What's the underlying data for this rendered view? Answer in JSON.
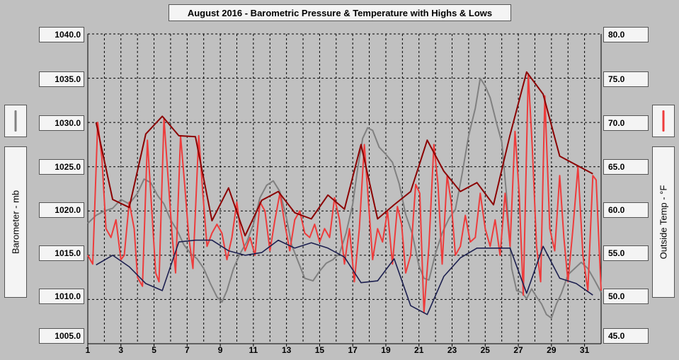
{
  "chart_data": {
    "type": "line",
    "title": "August 2016 - Barometric Pressure & Temperature with Highs & Lows",
    "left_axis": {
      "label": "Barometer - mb",
      "ylim": [
        1005,
        1040
      ],
      "ticks": [
        "1040.0",
        "1035.0",
        "1030.0",
        "1025.0",
        "1020.0",
        "1015.0",
        "1010.0",
        "1005.0"
      ]
    },
    "right_axis": {
      "label": "Outside Temp - °F",
      "ylim": [
        45,
        80
      ],
      "ticks": [
        "80.0",
        "75.0",
        "70.0",
        "65.0",
        "60.0",
        "55.0",
        "50.0",
        "45.0"
      ]
    },
    "x_axis": {
      "xlim": [
        1,
        32
      ],
      "tick_labels": [
        "1",
        "3",
        "5",
        "7",
        "9",
        "11",
        "13",
        "15",
        "17",
        "19",
        "21",
        "23",
        "25",
        "27",
        "29",
        "31"
      ]
    },
    "grid": true,
    "series": [
      {
        "name": "Barometer",
        "axis": "left",
        "color": "#808080",
        "points": [
          [
            1,
            1018.6
          ],
          [
            1.5,
            1019.5
          ],
          [
            2,
            1020
          ],
          [
            2.5,
            1020.3
          ],
          [
            3,
            1021.3
          ],
          [
            3.5,
            1020.8
          ],
          [
            4,
            1022
          ],
          [
            4.4,
            1023.6
          ],
          [
            4.8,
            1023.2
          ],
          [
            5.2,
            1021.8
          ],
          [
            5.6,
            1020.8
          ],
          [
            6,
            1019
          ],
          [
            6.4,
            1017.8
          ],
          [
            6.8,
            1016.2
          ],
          [
            7.2,
            1015.2
          ],
          [
            7.6,
            1014.6
          ],
          [
            8,
            1013.5
          ],
          [
            8.4,
            1011.8
          ],
          [
            8.8,
            1010.3
          ],
          [
            9.1,
            1009.7
          ],
          [
            9.4,
            1011
          ],
          [
            9.8,
            1013.5
          ],
          [
            10.2,
            1015.2
          ],
          [
            10.6,
            1016.5
          ],
          [
            11,
            1018.5
          ],
          [
            11.4,
            1021.5
          ],
          [
            11.8,
            1022.9
          ],
          [
            12.2,
            1023.4
          ],
          [
            12.6,
            1022.2
          ],
          [
            13,
            1019.2
          ],
          [
            13.3,
            1016.2
          ],
          [
            13.7,
            1014.3
          ],
          [
            14.1,
            1012.4
          ],
          [
            14.6,
            1012.1
          ],
          [
            15,
            1013.2
          ],
          [
            15.4,
            1014.1
          ],
          [
            15.8,
            1014.5
          ],
          [
            16.2,
            1015.2
          ],
          [
            16.6,
            1017.5
          ],
          [
            17,
            1020.8
          ],
          [
            17.3,
            1024.8
          ],
          [
            17.6,
            1028.2
          ],
          [
            17.9,
            1029.4
          ],
          [
            18.2,
            1029.1
          ],
          [
            18.6,
            1027.2
          ],
          [
            19,
            1026.4
          ],
          [
            19.4,
            1025.5
          ],
          [
            19.8,
            1023.1
          ],
          [
            20.2,
            1019.6
          ],
          [
            20.6,
            1017.4
          ],
          [
            21,
            1013.8
          ],
          [
            21.3,
            1012.4
          ],
          [
            21.6,
            1012.2
          ],
          [
            22,
            1015.2
          ],
          [
            22.4,
            1017.5
          ],
          [
            22.8,
            1019.1
          ],
          [
            23.2,
            1020.2
          ],
          [
            23.6,
            1024.1
          ],
          [
            24,
            1028.5
          ],
          [
            24.4,
            1031.6
          ],
          [
            24.7,
            1035
          ],
          [
            25,
            1034.1
          ],
          [
            25.3,
            1032.8
          ],
          [
            25.7,
            1029.8
          ],
          [
            26,
            1027.8
          ],
          [
            26.3,
            1021.5
          ],
          [
            26.6,
            1013.5
          ],
          [
            26.9,
            1011
          ],
          [
            27.2,
            1010.8
          ],
          [
            27.5,
            1010.1
          ],
          [
            27.8,
            1011.2
          ],
          [
            28.1,
            1010.3
          ],
          [
            28.4,
            1009.5
          ],
          [
            28.7,
            1008.3
          ],
          [
            29,
            1007.9
          ],
          [
            29.3,
            1009.5
          ],
          [
            29.6,
            1010.7
          ],
          [
            30,
            1012.8
          ],
          [
            30.4,
            1013.5
          ],
          [
            30.8,
            1014.2
          ],
          [
            31.2,
            1013.5
          ],
          [
            31.6,
            1012.2
          ],
          [
            32,
            1010.8
          ]
        ]
      },
      {
        "name": "Outside Temp",
        "axis": "right",
        "color": "#ee3b3b",
        "points": [
          [
            1,
            55
          ],
          [
            1.3,
            54
          ],
          [
            1.6,
            70
          ],
          [
            1.85,
            66
          ],
          [
            2.1,
            58
          ],
          [
            2.4,
            57
          ],
          [
            2.7,
            59
          ],
          [
            3,
            54.5
          ],
          [
            3.2,
            55
          ],
          [
            3.5,
            61
          ],
          [
            3.8,
            58
          ],
          [
            4,
            52.5
          ],
          [
            4.3,
            51.5
          ],
          [
            4.6,
            68
          ],
          [
            4.8,
            62
          ],
          [
            5.1,
            53
          ],
          [
            5.3,
            52
          ],
          [
            5.6,
            70.5
          ],
          [
            5.8,
            65
          ],
          [
            6.1,
            57
          ],
          [
            6.3,
            53
          ],
          [
            6.6,
            68.5
          ],
          [
            6.85,
            63
          ],
          [
            7.1,
            57
          ],
          [
            7.35,
            53.5
          ],
          [
            7.7,
            68.5
          ],
          [
            7.95,
            62
          ],
          [
            8.2,
            56
          ],
          [
            8.5,
            57.5
          ],
          [
            8.8,
            58.5
          ],
          [
            9.1,
            57.5
          ],
          [
            9.4,
            54.5
          ],
          [
            9.7,
            57
          ],
          [
            10,
            61
          ],
          [
            10.2,
            58
          ],
          [
            10.5,
            55.5
          ],
          [
            10.8,
            57
          ],
          [
            11.1,
            55
          ],
          [
            11.4,
            61
          ],
          [
            11.7,
            60
          ],
          [
            12,
            55.5
          ],
          [
            12.3,
            59
          ],
          [
            12.6,
            62
          ],
          [
            12.9,
            58.5
          ],
          [
            13.2,
            55.5
          ],
          [
            13.5,
            59
          ],
          [
            13.8,
            60
          ],
          [
            14.1,
            57.5
          ],
          [
            14.4,
            57
          ],
          [
            14.7,
            58.5
          ],
          [
            15,
            56.5
          ],
          [
            15.3,
            58
          ],
          [
            15.6,
            57
          ],
          [
            15.9,
            61.5
          ],
          [
            16.2,
            59
          ],
          [
            16.5,
            54
          ],
          [
            16.8,
            58
          ],
          [
            17.1,
            52
          ],
          [
            17.4,
            58
          ],
          [
            17.7,
            67.5
          ],
          [
            17.95,
            61
          ],
          [
            18.2,
            54.5
          ],
          [
            18.5,
            58
          ],
          [
            18.8,
            56.5
          ],
          [
            19.1,
            60
          ],
          [
            19.4,
            54
          ],
          [
            19.7,
            60.5
          ],
          [
            19.95,
            58.5
          ],
          [
            20.2,
            53
          ],
          [
            20.5,
            55
          ],
          [
            20.8,
            63
          ],
          [
            21.05,
            62
          ],
          [
            21.3,
            48.5
          ],
          [
            21.6,
            56
          ],
          [
            21.9,
            67.5
          ],
          [
            22.15,
            63
          ],
          [
            22.4,
            54
          ],
          [
            22.7,
            64
          ],
          [
            22.95,
            61
          ],
          [
            23.2,
            55
          ],
          [
            23.5,
            56
          ],
          [
            23.8,
            59.5
          ],
          [
            24.1,
            56.5
          ],
          [
            24.4,
            57
          ],
          [
            24.7,
            62
          ],
          [
            25,
            58
          ],
          [
            25.3,
            56
          ],
          [
            25.6,
            59
          ],
          [
            25.9,
            55
          ],
          [
            26.2,
            62
          ],
          [
            26.5,
            56
          ],
          [
            26.8,
            69
          ],
          [
            27.05,
            62
          ],
          [
            27.3,
            50.5
          ],
          [
            27.6,
            75.5
          ],
          [
            27.85,
            67
          ],
          [
            28.1,
            56
          ],
          [
            28.35,
            52
          ],
          [
            28.6,
            73
          ],
          [
            28.9,
            58
          ],
          [
            29.2,
            55.5
          ],
          [
            29.5,
            64
          ],
          [
            29.75,
            57
          ],
          [
            30,
            52
          ],
          [
            30.3,
            58
          ],
          [
            30.6,
            65
          ],
          [
            30.9,
            55
          ],
          [
            31.2,
            51
          ],
          [
            31.5,
            64
          ],
          [
            31.7,
            63.5
          ],
          [
            31.9,
            55
          ],
          [
            32,
            51
          ]
        ]
      },
      {
        "name": "Daily Temp High",
        "axis": "right",
        "color": "#8b0000",
        "points": [
          [
            1.5,
            70
          ],
          [
            2.5,
            61.3
          ],
          [
            3.5,
            60.4
          ],
          [
            4.5,
            68.7
          ],
          [
            5.5,
            70.7
          ],
          [
            6.5,
            68.5
          ],
          [
            7.5,
            68.4
          ],
          [
            8.5,
            58.9
          ],
          [
            9.5,
            62.6
          ],
          [
            10.5,
            57.2
          ],
          [
            11.5,
            61.2
          ],
          [
            12.5,
            62.2
          ],
          [
            13.5,
            59.8
          ],
          [
            14.5,
            59.1
          ],
          [
            15.5,
            61.8
          ],
          [
            16.5,
            60.2
          ],
          [
            17.5,
            67.5
          ],
          [
            18.5,
            59.1
          ],
          [
            19.5,
            60.7
          ],
          [
            20.5,
            62.2
          ],
          [
            21.5,
            68
          ],
          [
            22.5,
            64.5
          ],
          [
            23.5,
            62.2
          ],
          [
            24.5,
            63.2
          ],
          [
            25.5,
            60.7
          ],
          [
            26.5,
            68.6
          ],
          [
            27.5,
            75.7
          ],
          [
            28.5,
            73.2
          ],
          [
            29.5,
            66.2
          ],
          [
            30.5,
            65.2
          ],
          [
            31.5,
            64.2
          ]
        ]
      },
      {
        "name": "Daily Temp Low",
        "axis": "right",
        "color": "#1c1f4f",
        "points": [
          [
            1.5,
            53.9
          ],
          [
            2.5,
            55
          ],
          [
            3.5,
            53.7
          ],
          [
            4.5,
            51.8
          ],
          [
            5.5,
            51
          ],
          [
            6.5,
            56.5
          ],
          [
            7.5,
            56.7
          ],
          [
            8.5,
            56.7
          ],
          [
            9.5,
            55.5
          ],
          [
            10.5,
            55
          ],
          [
            11.5,
            55.3
          ],
          [
            12.5,
            56.7
          ],
          [
            13.5,
            55.8
          ],
          [
            14.5,
            56.4
          ],
          [
            15.5,
            55.8
          ],
          [
            16.5,
            54.8
          ],
          [
            17.5,
            51.9
          ],
          [
            18.5,
            52.1
          ],
          [
            19.5,
            54.6
          ],
          [
            20.5,
            49.3
          ],
          [
            21.5,
            48.3
          ],
          [
            22.5,
            52.6
          ],
          [
            23.5,
            54.7
          ],
          [
            24.5,
            55.8
          ],
          [
            25.5,
            55.8
          ],
          [
            26.5,
            55.8
          ],
          [
            27.5,
            50.7
          ],
          [
            28.5,
            56
          ],
          [
            29.5,
            52.4
          ],
          [
            30.5,
            51.8
          ],
          [
            31.5,
            50.5
          ]
        ]
      }
    ]
  },
  "colors": {
    "background": "#c0c0c0",
    "plot_background": "#c0c0c0",
    "grid": "#000000"
  }
}
